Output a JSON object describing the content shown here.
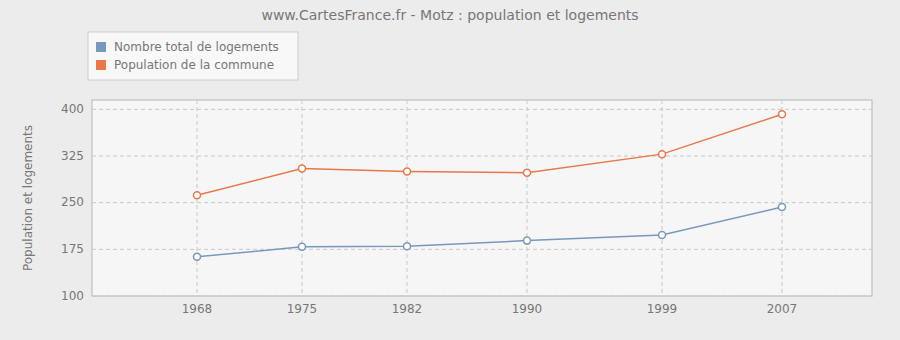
{
  "chart_data": {
    "type": "line",
    "title": "www.CartesFrance.fr - Motz : population et logements",
    "y_label": "Population et logements",
    "x": [
      1968,
      1975,
      1982,
      1990,
      1999,
      2007
    ],
    "xlim": [
      1961,
      2013
    ],
    "xticks": [
      1968,
      1975,
      1982,
      1990,
      1999,
      2007
    ],
    "ylim": [
      100,
      415
    ],
    "yticks": [
      100,
      175,
      250,
      325,
      400
    ],
    "grid": true,
    "legend": "upper left",
    "marker": "circle",
    "series": [
      {
        "name": "Nombre total de logements",
        "color": "#7799bb",
        "values": [
          163,
          179,
          180,
          189,
          198,
          243
        ]
      },
      {
        "name": "Population de la commune",
        "color": "#e8784a",
        "values": [
          262,
          305,
          300,
          298,
          328,
          392
        ]
      }
    ]
  }
}
